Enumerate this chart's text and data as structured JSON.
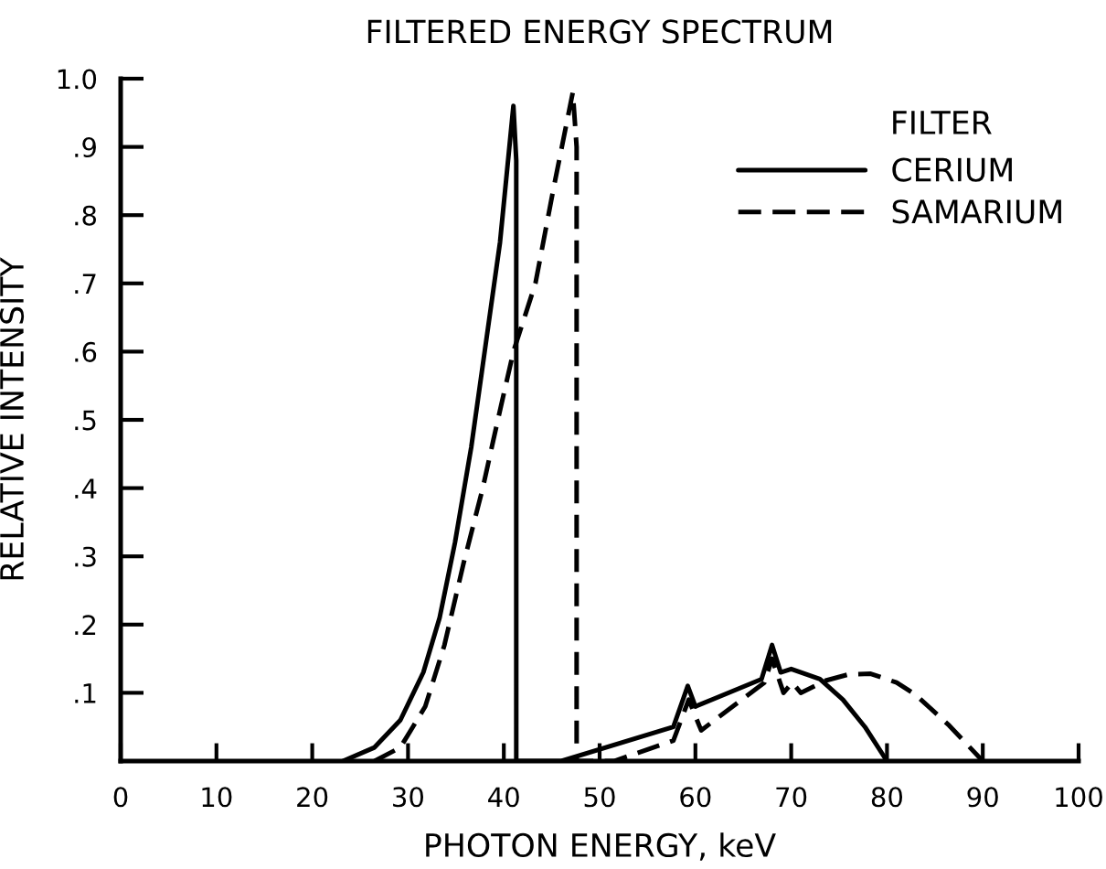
{
  "chart_data": {
    "type": "line",
    "title": "FILTERED ENERGY SPECTRUM",
    "xlabel": "PHOTON ENERGY, keV",
    "ylabel": "RELATIVE INTENSITY",
    "legend_title": "FILTER",
    "legend": "top right",
    "xlim": [
      0,
      100
    ],
    "xticks": [
      0,
      10,
      20,
      30,
      40,
      50,
      60,
      70,
      80,
      90,
      100
    ],
    "ylim": [
      0,
      1
    ],
    "yticks": [
      {
        "value": 0.1,
        "label": ".1"
      },
      {
        "value": 0.2,
        "label": ".2"
      },
      {
        "value": 0.3,
        "label": ".3"
      },
      {
        "value": 0.4,
        "label": ".4"
      },
      {
        "value": 0.5,
        "label": ".5"
      },
      {
        "value": 0.6,
        "label": ".6"
      },
      {
        "value": 0.7,
        "label": ".7"
      },
      {
        "value": 0.8,
        "label": ".8"
      },
      {
        "value": 0.9,
        "label": ".9"
      },
      {
        "value": 1,
        "label": "1.0"
      }
    ],
    "series": [
      {
        "name": "CERIUM",
        "color": "#000000",
        "line_style": "solid",
        "x": [
          23.2,
          26.5,
          29.2,
          31.6,
          33.3,
          34.9,
          36.6,
          38.3,
          39.6,
          40.3,
          41.0,
          41.3,
          41.3,
          46.0,
          57.7,
          59.2,
          60.0,
          66.9,
          68.0,
          68.9,
          70.0,
          73.0,
          75.4,
          77.7,
          80.0
        ],
        "values": [
          0,
          0.02,
          0.06,
          0.13,
          0.21,
          0.32,
          0.46,
          0.63,
          0.76,
          0.86,
          0.96,
          0.88,
          0,
          0,
          0.05,
          0.11,
          0.08,
          0.12,
          0.17,
          0.13,
          0.135,
          0.12,
          0.09,
          0.05,
          0
        ]
      },
      {
        "name": "SAMARIUM",
        "color": "#000000",
        "line_style": "dashed",
        "x": [
          26.5,
          29.2,
          30.5,
          31.8,
          33.8,
          35.8,
          37.8,
          38.9,
          39.7,
          41.0,
          43.3,
          45.2,
          47.2,
          47.6,
          47.6,
          51.5,
          57.7,
          59.3,
          60.6,
          67.2,
          68.0,
          69.2,
          70.1,
          71.0,
          73.6,
          76.0,
          78.3,
          81.0,
          83.0,
          86.5,
          90.0
        ],
        "values": [
          0,
          0.02,
          0.05,
          0.08,
          0.17,
          0.29,
          0.4,
          0.47,
          0.52,
          0.6,
          0.7,
          0.84,
          0.98,
          0.9,
          0,
          0,
          0.03,
          0.09,
          0.045,
          0.115,
          0.15,
          0.1,
          0.115,
          0.1,
          0.118,
          0.127,
          0.128,
          0.115,
          0.097,
          0.052,
          0
        ]
      }
    ]
  }
}
